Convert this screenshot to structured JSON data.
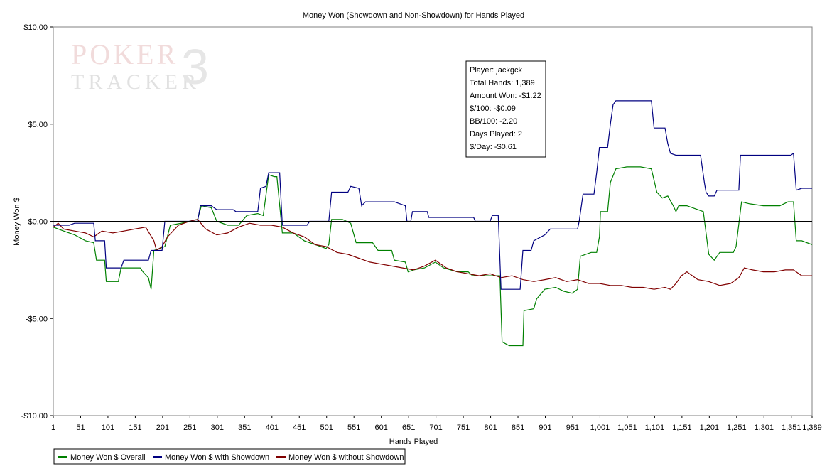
{
  "chart_data": {
    "type": "line",
    "title": "Money Won (Showdown and Non-Showdown) for Hands Played",
    "xlabel": "Hands Played",
    "ylabel": "Money Won $",
    "xlim": [
      1,
      1389
    ],
    "ylim": [
      -10,
      10
    ],
    "x_ticks": [
      1,
      51,
      101,
      151,
      201,
      251,
      301,
      351,
      401,
      451,
      501,
      551,
      601,
      651,
      701,
      751,
      801,
      851,
      901,
      951,
      1001,
      1051,
      1101,
      1151,
      1201,
      1251,
      1301,
      1351,
      1389
    ],
    "x_tick_labels": [
      "1",
      "51",
      "101",
      "151",
      "201",
      "251",
      "301",
      "351",
      "401",
      "451",
      "501",
      "551",
      "601",
      "651",
      "701",
      "751",
      "801",
      "851",
      "901",
      "951",
      "1,001",
      "1,051",
      "1,101",
      "1,151",
      "1,201",
      "1,251",
      "1,301",
      "1,351",
      "1,389"
    ],
    "y_ticks": [
      10,
      5,
      0,
      -5,
      -10
    ],
    "y_tick_labels": [
      "$10.00",
      "$5.00",
      "$0.00",
      "-$5.00",
      "-$10.00"
    ],
    "grid": false,
    "legend_position": "bottom-left",
    "watermark": "POKER TRACKER 3",
    "info_box": [
      "Player: jackgck",
      "Total Hands: 1,389",
      "Amount Won: -$1.22",
      "$/100: -$0.09",
      "BB/100: -2.20",
      "Days Played: 2",
      "$/Day: -$0.61"
    ],
    "series": [
      {
        "name": "Money Won $ Overall",
        "color": "#008000",
        "points": [
          [
            1,
            -0.3
          ],
          [
            20,
            -0.5
          ],
          [
            40,
            -0.7
          ],
          [
            60,
            -1.0
          ],
          [
            75,
            -1.1
          ],
          [
            80,
            -2.0
          ],
          [
            95,
            -2.0
          ],
          [
            98,
            -3.1
          ],
          [
            120,
            -3.1
          ],
          [
            125,
            -2.4
          ],
          [
            160,
            -2.4
          ],
          [
            165,
            -2.6
          ],
          [
            175,
            -2.9
          ],
          [
            180,
            -3.5
          ],
          [
            185,
            -1.5
          ],
          [
            195,
            -1.4
          ],
          [
            205,
            -1.3
          ],
          [
            215,
            -0.2
          ],
          [
            235,
            -0.1
          ],
          [
            250,
            0.0
          ],
          [
            265,
            0.1
          ],
          [
            272,
            0.8
          ],
          [
            290,
            0.7
          ],
          [
            300,
            0.0
          ],
          [
            320,
            -0.2
          ],
          [
            340,
            -0.2
          ],
          [
            355,
            0.3
          ],
          [
            375,
            0.4
          ],
          [
            385,
            0.3
          ],
          [
            395,
            2.4
          ],
          [
            405,
            2.3
          ],
          [
            410,
            2.3
          ],
          [
            420,
            -0.6
          ],
          [
            440,
            -0.6
          ],
          [
            460,
            -1.0
          ],
          [
            480,
            -1.2
          ],
          [
            500,
            -1.4
          ],
          [
            505,
            -1.2
          ],
          [
            510,
            0.1
          ],
          [
            530,
            0.1
          ],
          [
            545,
            -0.1
          ],
          [
            555,
            -1.1
          ],
          [
            585,
            -1.1
          ],
          [
            595,
            -1.5
          ],
          [
            620,
            -1.5
          ],
          [
            625,
            -2.0
          ],
          [
            645,
            -2.1
          ],
          [
            650,
            -2.6
          ],
          [
            660,
            -2.5
          ],
          [
            680,
            -2.4
          ],
          [
            700,
            -2.1
          ],
          [
            715,
            -2.4
          ],
          [
            740,
            -2.6
          ],
          [
            760,
            -2.6
          ],
          [
            768,
            -2.8
          ],
          [
            800,
            -2.8
          ],
          [
            818,
            -2.8
          ],
          [
            822,
            -6.2
          ],
          [
            835,
            -6.4
          ],
          [
            860,
            -6.4
          ],
          [
            862,
            -4.6
          ],
          [
            880,
            -4.5
          ],
          [
            885,
            -4.0
          ],
          [
            900,
            -3.5
          ],
          [
            920,
            -3.4
          ],
          [
            935,
            -3.6
          ],
          [
            950,
            -3.7
          ],
          [
            960,
            -3.5
          ],
          [
            965,
            -1.8
          ],
          [
            985,
            -1.6
          ],
          [
            995,
            -1.6
          ],
          [
            1000,
            -0.8
          ],
          [
            1002,
            0.5
          ],
          [
            1015,
            0.5
          ],
          [
            1020,
            2.0
          ],
          [
            1030,
            2.7
          ],
          [
            1050,
            2.8
          ],
          [
            1075,
            2.8
          ],
          [
            1095,
            2.7
          ],
          [
            1105,
            1.5
          ],
          [
            1115,
            1.2
          ],
          [
            1125,
            1.3
          ],
          [
            1135,
            0.8
          ],
          [
            1140,
            0.5
          ],
          [
            1145,
            0.8
          ],
          [
            1160,
            0.8
          ],
          [
            1180,
            0.6
          ],
          [
            1190,
            0.5
          ],
          [
            1200,
            -1.7
          ],
          [
            1210,
            -2.0
          ],
          [
            1220,
            -1.6
          ],
          [
            1245,
            -1.6
          ],
          [
            1250,
            -1.3
          ],
          [
            1260,
            1.0
          ],
          [
            1275,
            0.9
          ],
          [
            1300,
            0.8
          ],
          [
            1330,
            0.8
          ],
          [
            1345,
            1.0
          ],
          [
            1355,
            1.0
          ],
          [
            1360,
            -1.0
          ],
          [
            1370,
            -1.0
          ],
          [
            1389,
            -1.2
          ]
        ]
      },
      {
        "name": "Money Won $ with Showdown",
        "color": "#000080",
        "points": [
          [
            1,
            -0.2
          ],
          [
            30,
            -0.2
          ],
          [
            40,
            -0.1
          ],
          [
            75,
            -0.1
          ],
          [
            78,
            -1.0
          ],
          [
            95,
            -1.0
          ],
          [
            98,
            -2.4
          ],
          [
            125,
            -2.4
          ],
          [
            130,
            -2.0
          ],
          [
            150,
            -2.0
          ],
          [
            155,
            -2.0
          ],
          [
            175,
            -2.0
          ],
          [
            180,
            -1.5
          ],
          [
            200,
            -1.5
          ],
          [
            205,
            0.0
          ],
          [
            260,
            0.0
          ],
          [
            265,
            0.0
          ],
          [
            270,
            0.8
          ],
          [
            290,
            0.8
          ],
          [
            300,
            0.6
          ],
          [
            330,
            0.6
          ],
          [
            335,
            0.5
          ],
          [
            375,
            0.5
          ],
          [
            380,
            1.7
          ],
          [
            390,
            1.8
          ],
          [
            395,
            2.5
          ],
          [
            415,
            2.5
          ],
          [
            420,
            -0.2
          ],
          [
            465,
            -0.2
          ],
          [
            470,
            -0.0
          ],
          [
            505,
            -0.0
          ],
          [
            510,
            1.5
          ],
          [
            540,
            1.5
          ],
          [
            545,
            1.8
          ],
          [
            560,
            1.7
          ],
          [
            565,
            0.8
          ],
          [
            572,
            1.0
          ],
          [
            625,
            1.0
          ],
          [
            645,
            0.8
          ],
          [
            648,
            0.0
          ],
          [
            655,
            0.0
          ],
          [
            658,
            0.5
          ],
          [
            685,
            0.5
          ],
          [
            688,
            0.2
          ],
          [
            770,
            0.2
          ],
          [
            773,
            0.0
          ],
          [
            800,
            0.0
          ],
          [
            804,
            0.3
          ],
          [
            815,
            0.3
          ],
          [
            820,
            -3.5
          ],
          [
            855,
            -3.5
          ],
          [
            860,
            -1.5
          ],
          [
            875,
            -1.5
          ],
          [
            880,
            -1.0
          ],
          [
            900,
            -0.7
          ],
          [
            910,
            -0.4
          ],
          [
            960,
            -0.4
          ],
          [
            963,
            0.0
          ],
          [
            970,
            1.4
          ],
          [
            990,
            1.4
          ],
          [
            995,
            2.5
          ],
          [
            1000,
            3.8
          ],
          [
            1015,
            3.8
          ],
          [
            1020,
            5.0
          ],
          [
            1025,
            6.0
          ],
          [
            1030,
            6.2
          ],
          [
            1095,
            6.2
          ],
          [
            1100,
            4.8
          ],
          [
            1120,
            4.8
          ],
          [
            1125,
            4.0
          ],
          [
            1130,
            3.5
          ],
          [
            1140,
            3.4
          ],
          [
            1185,
            3.4
          ],
          [
            1192,
            2.0
          ],
          [
            1195,
            1.5
          ],
          [
            1200,
            1.3
          ],
          [
            1210,
            1.3
          ],
          [
            1215,
            1.6
          ],
          [
            1255,
            1.6
          ],
          [
            1258,
            3.4
          ],
          [
            1350,
            3.4
          ],
          [
            1355,
            3.5
          ],
          [
            1360,
            1.6
          ],
          [
            1370,
            1.7
          ],
          [
            1389,
            1.7
          ]
        ]
      },
      {
        "name": "Money Won $ without Showdown",
        "color": "#800000",
        "points": [
          [
            1,
            -0.3
          ],
          [
            10,
            -0.1
          ],
          [
            20,
            -0.4
          ],
          [
            40,
            -0.5
          ],
          [
            60,
            -0.6
          ],
          [
            75,
            -0.8
          ],
          [
            90,
            -0.5
          ],
          [
            110,
            -0.6
          ],
          [
            130,
            -0.5
          ],
          [
            150,
            -0.4
          ],
          [
            170,
            -0.3
          ],
          [
            185,
            -1.0
          ],
          [
            190,
            -1.5
          ],
          [
            200,
            -1.3
          ],
          [
            210,
            -0.8
          ],
          [
            230,
            -0.2
          ],
          [
            250,
            0.0
          ],
          [
            265,
            0.1
          ],
          [
            280,
            -0.4
          ],
          [
            300,
            -0.7
          ],
          [
            320,
            -0.6
          ],
          [
            340,
            -0.3
          ],
          [
            360,
            -0.1
          ],
          [
            380,
            -0.2
          ],
          [
            400,
            -0.2
          ],
          [
            420,
            -0.3
          ],
          [
            440,
            -0.6
          ],
          [
            460,
            -0.8
          ],
          [
            480,
            -1.2
          ],
          [
            500,
            -1.3
          ],
          [
            520,
            -1.6
          ],
          [
            540,
            -1.7
          ],
          [
            560,
            -1.9
          ],
          [
            580,
            -2.1
          ],
          [
            600,
            -2.2
          ],
          [
            620,
            -2.3
          ],
          [
            640,
            -2.4
          ],
          [
            660,
            -2.5
          ],
          [
            680,
            -2.3
          ],
          [
            700,
            -2.0
          ],
          [
            720,
            -2.4
          ],
          [
            740,
            -2.6
          ],
          [
            760,
            -2.7
          ],
          [
            780,
            -2.8
          ],
          [
            800,
            -2.7
          ],
          [
            820,
            -2.9
          ],
          [
            840,
            -2.8
          ],
          [
            860,
            -3.0
          ],
          [
            880,
            -3.1
          ],
          [
            900,
            -3.0
          ],
          [
            920,
            -2.9
          ],
          [
            940,
            -3.1
          ],
          [
            960,
            -3.0
          ],
          [
            980,
            -3.2
          ],
          [
            1000,
            -3.2
          ],
          [
            1020,
            -3.3
          ],
          [
            1040,
            -3.3
          ],
          [
            1060,
            -3.4
          ],
          [
            1080,
            -3.4
          ],
          [
            1100,
            -3.5
          ],
          [
            1120,
            -3.4
          ],
          [
            1130,
            -3.5
          ],
          [
            1140,
            -3.2
          ],
          [
            1150,
            -2.8
          ],
          [
            1160,
            -2.6
          ],
          [
            1170,
            -2.8
          ],
          [
            1180,
            -3.0
          ],
          [
            1200,
            -3.1
          ],
          [
            1220,
            -3.3
          ],
          [
            1240,
            -3.2
          ],
          [
            1255,
            -2.9
          ],
          [
            1265,
            -2.4
          ],
          [
            1280,
            -2.5
          ],
          [
            1300,
            -2.6
          ],
          [
            1320,
            -2.6
          ],
          [
            1340,
            -2.5
          ],
          [
            1355,
            -2.5
          ],
          [
            1370,
            -2.8
          ],
          [
            1389,
            -2.8
          ]
        ]
      }
    ]
  }
}
